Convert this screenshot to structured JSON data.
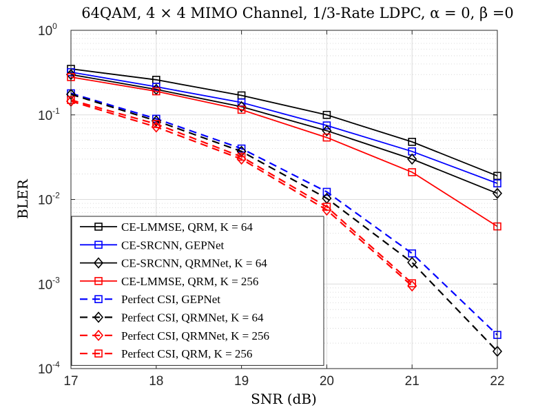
{
  "chart_data": {
    "type": "line",
    "title": "64QAM, 4 × 4 MIMO Channel, 1/3-Rate LDPC, α = 0, β =0",
    "xlabel": "SNR (dB)",
    "ylabel": "BLER",
    "xlim": [
      17,
      22
    ],
    "ylim": [
      0.0001,
      1
    ],
    "yscale": "log",
    "grid": true,
    "x_ticks": [
      "17",
      "18",
      "19",
      "20",
      "21",
      "22"
    ],
    "y_ticks": [
      {
        "value": 1,
        "base": "10",
        "exp": "0"
      },
      {
        "value": 0.1,
        "base": "10",
        "exp": "-1"
      },
      {
        "value": 0.01,
        "base": "10",
        "exp": "-2"
      },
      {
        "value": 0.001,
        "base": "10",
        "exp": "-3"
      },
      {
        "value": 0.0001,
        "base": "10",
        "exp": "-4"
      }
    ],
    "legend_position": "bottom-left",
    "series": [
      {
        "name": "CE-LMMSE, QRM, K = 64",
        "color": "#000000",
        "dash": "solid",
        "marker": "square",
        "x": [
          17,
          18,
          19,
          20,
          21,
          22
        ],
        "y": [
          0.35,
          0.26,
          0.17,
          0.1,
          0.048,
          0.019
        ]
      },
      {
        "name": "CE-SRCNN, GEPNet",
        "color": "#0000ff",
        "dash": "solid",
        "marker": "square",
        "x": [
          17,
          18,
          19,
          20,
          21,
          22
        ],
        "y": [
          0.32,
          0.215,
          0.14,
          0.075,
          0.037,
          0.0155
        ]
      },
      {
        "name": "CE-SRCNN, QRMNet, K = 64",
        "color": "#000000",
        "dash": "solid",
        "marker": "diamond",
        "x": [
          17,
          18,
          19,
          20,
          21,
          22
        ],
        "y": [
          0.3,
          0.2,
          0.125,
          0.065,
          0.03,
          0.0118
        ]
      },
      {
        "name": "CE-LMMSE, QRM, K = 256",
        "color": "#ff0000",
        "dash": "solid",
        "marker": "square",
        "x": [
          17,
          18,
          19,
          20,
          21,
          22
        ],
        "y": [
          0.28,
          0.19,
          0.115,
          0.054,
          0.021,
          0.0048
        ]
      },
      {
        "name": "Perfect CSI, GEPNet",
        "color": "#0000ff",
        "dash": "dashed",
        "marker": "square",
        "x": [
          17,
          18,
          19,
          20,
          21,
          22
        ],
        "y": [
          0.18,
          0.09,
          0.04,
          0.0123,
          0.0023,
          0.00025
        ]
      },
      {
        "name": "Perfect CSI, QRMNet, K = 64",
        "color": "#000000",
        "dash": "dashed",
        "marker": "diamond",
        "x": [
          17,
          18,
          19,
          20,
          21,
          22
        ],
        "y": [
          0.175,
          0.085,
          0.037,
          0.0103,
          0.0018,
          0.00016
        ]
      },
      {
        "name": "Perfect CSI, QRMNet, K = 256",
        "color": "#ff0000",
        "dash": "dashed",
        "marker": "diamond",
        "x": [
          17,
          18,
          19,
          20,
          21
        ],
        "y": [
          0.145,
          0.072,
          0.03,
          0.0075,
          0.00095
        ]
      },
      {
        "name": "Perfect CSI, QRM, K = 256",
        "color": "#ff0000",
        "dash": "dashed",
        "marker": "square",
        "x": [
          17,
          18,
          19,
          20,
          21
        ],
        "y": [
          0.15,
          0.078,
          0.032,
          0.0082,
          0.00102
        ]
      }
    ]
  }
}
